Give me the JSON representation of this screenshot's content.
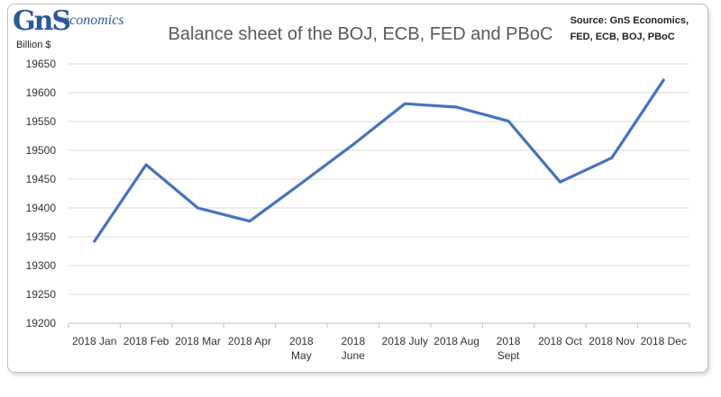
{
  "brand": {
    "logo_main": "GnS",
    "logo_sub": "economics"
  },
  "chart_data": {
    "type": "line",
    "title": "Balance sheet of the BOJ, ECB, FED and PBoC",
    "ylabel": "Billion $",
    "xlabel": "",
    "source": [
      "Source: GnS Economics,",
      "FED, ECB, BOJ, PBoC"
    ],
    "categories": [
      "2018 Jan",
      "2018 Feb",
      "2018 Mar",
      "2018 Apr",
      "2018 May",
      "2018 June",
      "2018 July",
      "2018 Aug",
      "2018 Sept",
      "2018 Oct",
      "2018 Nov",
      "2018 Dec"
    ],
    "category_lines": [
      [
        "2018 Jan"
      ],
      [
        "2018 Feb"
      ],
      [
        "2018 Mar"
      ],
      [
        "2018 Apr"
      ],
      [
        "2018",
        "May"
      ],
      [
        "2018",
        "June"
      ],
      [
        "2018 July"
      ],
      [
        "2018 Aug"
      ],
      [
        "2018",
        "Sept"
      ],
      [
        "2018 Oct"
      ],
      [
        "2018 Nov"
      ],
      [
        "2018 Dec"
      ]
    ],
    "series": [
      {
        "values": [
          19342,
          19475,
          19400,
          19377,
          19443,
          19510,
          19581,
          19575,
          19551,
          19445,
          19487,
          19622
        ],
        "color": "#4472c4"
      }
    ],
    "ylim": [
      19200,
      19650
    ],
    "yticks": [
      19200,
      19250,
      19300,
      19350,
      19400,
      19450,
      19500,
      19550,
      19600,
      19650
    ],
    "grid": true,
    "legend": "none"
  }
}
